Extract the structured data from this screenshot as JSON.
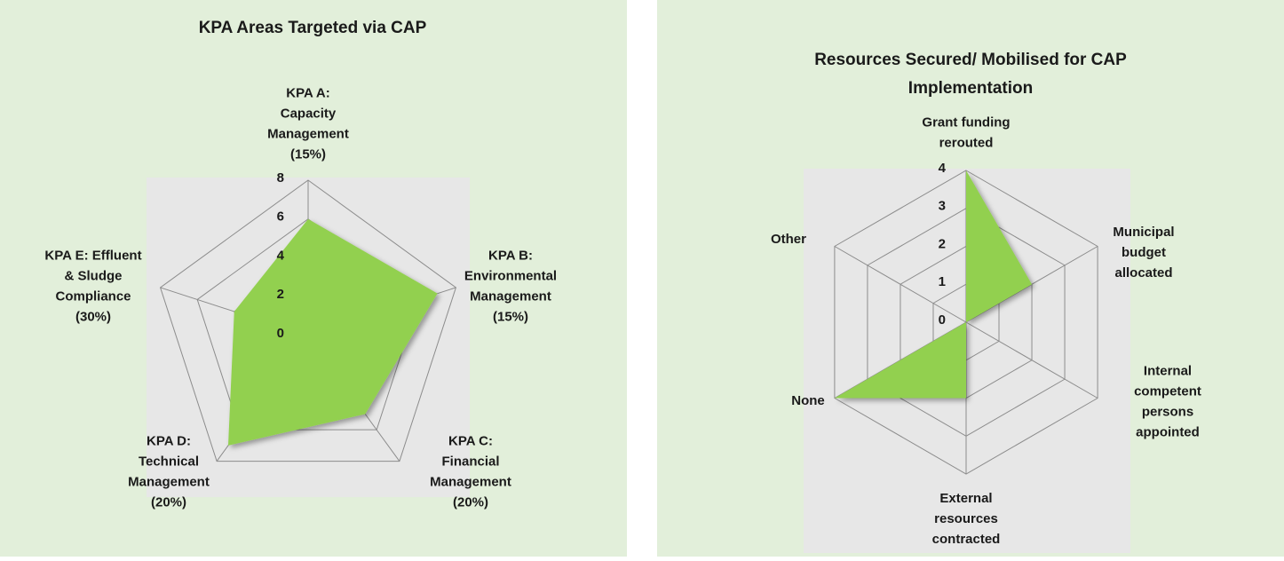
{
  "chart_data": [
    {
      "type": "radar",
      "title": "KPA Areas Targeted via CAP",
      "categories": [
        "KPA A:\nCapacity\nManagement\n(15%)",
        "KPA B:\nEnvironmental\nManagement\n(15%)",
        "KPA C:\nFinancial\nManagement\n(20%)",
        "KPA D:\nTechnical\nManagement\n(20%)",
        "KPA E: Effluent\n& Sludge\nCompliance\n(30%)"
      ],
      "values": [
        6,
        7,
        5,
        7,
        4
      ],
      "color": "#92d050",
      "ylim": [
        0,
        8
      ],
      "yticks": [
        0,
        2,
        4,
        6,
        8
      ],
      "grid": true
    },
    {
      "type": "radar",
      "title": "Resources Secured/ Mobilised for CAP\nImplementation",
      "categories": [
        "Grant funding\nrerouted",
        "Municipal\nbudget\nallocated",
        "Internal\ncompetent\npersons\nappointed",
        "External\nresources\ncontracted",
        "None",
        "Other"
      ],
      "values": [
        4,
        2,
        0,
        2,
        4,
        0
      ],
      "color": "#92d050",
      "ylim": [
        0,
        4
      ],
      "yticks": [
        0,
        1,
        2,
        3,
        4
      ],
      "grid": true
    }
  ]
}
